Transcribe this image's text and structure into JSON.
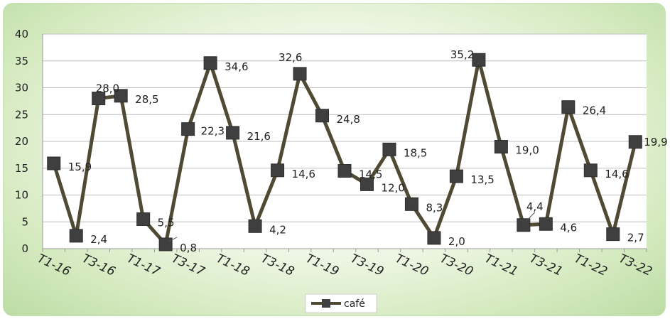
{
  "chart_data": {
    "type": "line",
    "title": "",
    "xlabel": "",
    "ylabel": "",
    "ylim": [
      0,
      40
    ],
    "yticks": [
      "0",
      "5",
      "10",
      "15",
      "20",
      "25",
      "30",
      "35",
      "40"
    ],
    "grid": "horizontal",
    "legend_position": "bottom",
    "x": [
      "T1-16",
      "T2-16",
      "T3-16",
      "T4-16",
      "T1-17",
      "T2-17",
      "T3-17",
      "T4-17",
      "T1-18",
      "T2-18",
      "T3-18",
      "T4-18",
      "T1-19",
      "T2-19",
      "T3-19",
      "T4-19",
      "T1-20",
      "T2-20",
      "T3-20",
      "T4-20",
      "T1-21",
      "T2-21",
      "T3-21",
      "T4-21",
      "T1-22",
      "T2-22",
      "T3-22"
    ],
    "xtick_labels": [
      "T1-16",
      "T3-16",
      "T1-17",
      "T3-17",
      "T1-18",
      "T3-18",
      "T1-19",
      "T3-19",
      "T1-20",
      "T3-20",
      "T1-21",
      "T3-21",
      "T1-22",
      "T3-22"
    ],
    "series": [
      {
        "name": "café",
        "color": "#4f4a33",
        "marker_color": "#3f3f3f",
        "values": [
          15.9,
          2.4,
          28.0,
          28.5,
          5.5,
          0.8,
          22.3,
          34.6,
          21.6,
          4.2,
          14.6,
          32.6,
          24.8,
          14.5,
          12.0,
          18.5,
          8.3,
          2.0,
          13.5,
          35.2,
          19.0,
          4.4,
          4.6,
          26.4,
          14.6,
          2.7,
          19.9
        ],
        "data_labels": [
          "15,9",
          "2,4",
          "28,0",
          "28,5",
          "5,5",
          "0,8",
          "22,3",
          "34,6",
          "21,6",
          "4,2",
          "14,6",
          "32,6",
          "24,8",
          "14,5",
          "12,0",
          "18,5",
          "8,3",
          "2,0",
          "13,5",
          "35,2",
          "19,0",
          "4,4",
          "4,6",
          "26,4",
          "14,6",
          "2,7",
          "19,9"
        ]
      }
    ]
  }
}
